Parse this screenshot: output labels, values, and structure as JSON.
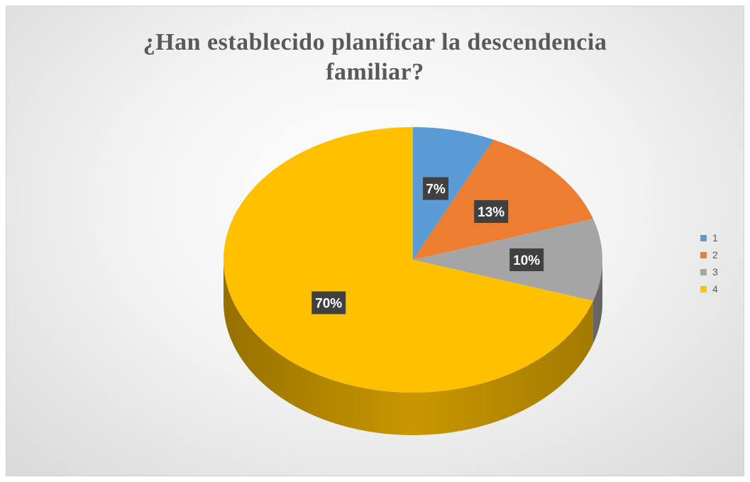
{
  "chart_data": {
    "type": "pie",
    "title_lines": [
      "¿Han establecido planificar la descendencia",
      "familiar?"
    ],
    "categories": [
      "1",
      "2",
      "3",
      "4"
    ],
    "values": [
      7,
      13,
      10,
      70
    ],
    "labels": [
      "7%",
      "13%",
      "10%",
      "70%"
    ],
    "colors": [
      "#5B9BD5",
      "#ED7D31",
      "#A5A5A5",
      "#FFC000"
    ],
    "side_colors": [
      "#3E7CB5",
      "#B85E22",
      "#7E7E7E",
      "#C99700"
    ],
    "legend_position": "right",
    "style": "3d"
  }
}
